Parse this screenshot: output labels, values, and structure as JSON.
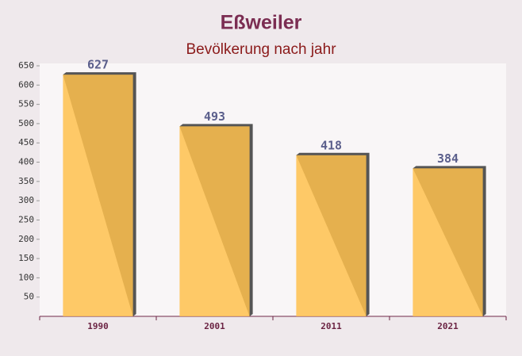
{
  "chart_data": {
    "type": "bar",
    "title": "Eßweiler",
    "subtitle": "Bevölkerung nach jahr",
    "categories": [
      "1990",
      "2001",
      "2011",
      "2021"
    ],
    "values": [
      627,
      493,
      418,
      384
    ],
    "color": "#ffc14d",
    "ylim": [
      0,
      650
    ],
    "yticks": [
      50,
      100,
      150,
      200,
      250,
      300,
      350,
      400,
      450,
      500,
      550,
      600,
      650
    ],
    "grid": false
  }
}
